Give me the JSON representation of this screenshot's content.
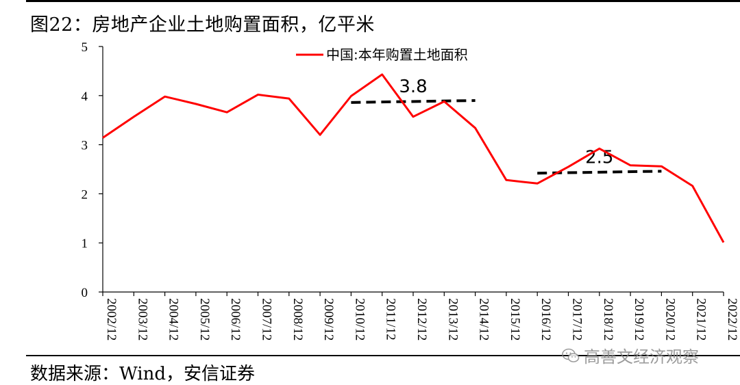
{
  "title": "图22：房地产企业土地购置面积，亿平米",
  "source": "数据来源：Wind，安信证券",
  "watermark": "高善文经济观察",
  "colors": {
    "series": "#ff0000",
    "reference": "#000000"
  },
  "chart_data": {
    "type": "line",
    "title": "",
    "xlabel": "",
    "ylabel": "",
    "ylim": [
      0,
      5
    ],
    "yticks": [
      0,
      1,
      2,
      3,
      4,
      5
    ],
    "grid": false,
    "legend_position": "top-center",
    "x": [
      "2002/12",
      "2003/12",
      "2004/12",
      "2005/12",
      "2006/12",
      "2007/12",
      "2008/12",
      "2009/12",
      "2010/12",
      "2011/12",
      "2012/12",
      "2013/12",
      "2014/12",
      "2015/12",
      "2016/12",
      "2017/12",
      "2018/12",
      "2019/12",
      "2020/12",
      "2021/12",
      "2022/12"
    ],
    "series": [
      {
        "name": "中国:本年购置土地面积",
        "values": [
          3.14,
          3.57,
          3.98,
          3.83,
          3.66,
          4.02,
          3.94,
          3.2,
          3.99,
          4.43,
          3.57,
          3.88,
          3.34,
          2.28,
          2.21,
          2.55,
          2.92,
          2.58,
          2.56,
          2.16,
          1.01
        ]
      }
    ],
    "annotations": [
      {
        "label": "3.8",
        "from": "2010/12",
        "to": "2014/12",
        "y_from": 3.86,
        "y_to": 3.9
      },
      {
        "label": "2.5",
        "from": "2016/12",
        "to": "2020/12",
        "y_from": 2.42,
        "y_to": 2.46
      }
    ]
  }
}
